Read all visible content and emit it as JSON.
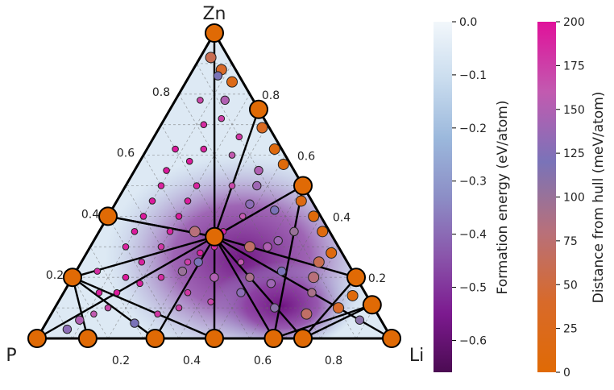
{
  "chart_data": {
    "type": "scatter",
    "subtype": "ternary-phase-diagram",
    "corners": {
      "top": "Zn",
      "left": "P",
      "right": "Li"
    },
    "axis_ticks": {
      "bottom": [
        "0.2",
        "0.4",
        "0.6",
        "0.8"
      ],
      "left": [
        "0.2",
        "0.4",
        "0.6",
        "0.8"
      ],
      "right": [
        "0.8",
        "0.6",
        "0.4",
        "0.2"
      ]
    },
    "grid": true,
    "colorbars": [
      {
        "label": "Formation energy (eV/atom)",
        "ticks": [
          "0.0",
          "−0.1",
          "−0.2",
          "−0.3",
          "−0.4",
          "−0.5",
          "−0.6"
        ],
        "tick_values": [
          0.0,
          -0.1,
          -0.2,
          -0.3,
          -0.4,
          -0.5,
          -0.6
        ],
        "range": [
          -0.66,
          0.0
        ],
        "colors": [
          "#f2f7fb",
          "#c9dcee",
          "#9bb8dc",
          "#8c8ec6",
          "#8a56ab",
          "#7c1a8f",
          "#4b0b52"
        ]
      },
      {
        "label": "Distance from hull (meV/atom)",
        "ticks": [
          "200",
          "175",
          "150",
          "125",
          "100",
          "75",
          "50",
          "25",
          "0"
        ],
        "tick_values": [
          200,
          175,
          150,
          125,
          100,
          75,
          50,
          25,
          0
        ],
        "range": [
          0,
          200
        ],
        "colors": [
          "#e0119a",
          "#c25ab0",
          "#7a73b8",
          "#b8707a",
          "#d86a2a",
          "#e06a05"
        ]
      }
    ],
    "stable_phases": [
      {
        "p": 1.0,
        "zn": 0.0
      },
      {
        "p": 0.0,
        "zn": 1.0
      },
      {
        "p": 0.0,
        "zn": 0.0
      },
      {
        "p": 0.333,
        "zn": 0.0
      },
      {
        "p": 0.25,
        "zn": 0.0
      },
      {
        "p": 0.5,
        "zn": 0.0
      },
      {
        "p": 0.667,
        "zn": 0.0
      },
      {
        "p": 0.857,
        "zn": 0.0
      },
      {
        "p": 0.0,
        "zn": 0.75
      },
      {
        "p": 0.0,
        "zn": 0.5
      },
      {
        "p": 0.0,
        "zn": 0.2
      },
      {
        "p": 0.0,
        "zn": 0.11
      },
      {
        "p": 0.6,
        "zn": 0.4
      },
      {
        "p": 0.8,
        "zn": 0.2
      },
      {
        "p": 0.333,
        "zn": 0.333
      }
    ],
    "tie_lines": [
      [
        1,
        2
      ],
      [
        0,
        1
      ],
      [
        0,
        2
      ],
      [
        14,
        0
      ],
      [
        14,
        1
      ],
      [
        14,
        2
      ],
      [
        14,
        3
      ],
      [
        14,
        4
      ],
      [
        14,
        5
      ],
      [
        14,
        6
      ],
      [
        14,
        8
      ],
      [
        14,
        9
      ],
      [
        14,
        10
      ],
      [
        14,
        12
      ],
      [
        14,
        13
      ],
      [
        13,
        6
      ],
      [
        13,
        7
      ],
      [
        12,
        14
      ],
      [
        4,
        10
      ],
      [
        4,
        11
      ],
      [
        3,
        11
      ],
      [
        3,
        9
      ],
      [
        5,
        13
      ],
      [
        8,
        10
      ]
    ],
    "metastable_phases": [
      {
        "p": 0.05,
        "zn": 0.92,
        "d": 60
      },
      {
        "p": 0.04,
        "zn": 0.88,
        "d": 40
      },
      {
        "p": 0.03,
        "zn": 0.84,
        "d": 20
      },
      {
        "p": 0.02,
        "zn": 0.69,
        "d": 30
      },
      {
        "p": 0.02,
        "zn": 0.62,
        "d": 10
      },
      {
        "p": 0.02,
        "zn": 0.57,
        "d": 5
      },
      {
        "p": 0.03,
        "zn": 0.45,
        "d": 15
      },
      {
        "p": 0.02,
        "zn": 0.4,
        "d": 5
      },
      {
        "p": 0.02,
        "zn": 0.35,
        "d": 10
      },
      {
        "p": 0.03,
        "zn": 0.28,
        "d": 12
      },
      {
        "p": 0.04,
        "zn": 0.14,
        "d": 8
      },
      {
        "p": 0.06,
        "zn": 0.06,
        "d": 110
      },
      {
        "p": 0.12,
        "zn": 0.72,
        "d": 175
      },
      {
        "p": 0.1,
        "zn": 0.66,
        "d": 180
      },
      {
        "p": 0.15,
        "zn": 0.6,
        "d": 160
      },
      {
        "p": 0.1,
        "zn": 0.55,
        "d": 150
      },
      {
        "p": 0.13,
        "zn": 0.5,
        "d": 140
      },
      {
        "p": 0.2,
        "zn": 0.5,
        "d": 170
      },
      {
        "p": 0.12,
        "zn": 0.42,
        "d": 120
      },
      {
        "p": 0.18,
        "zn": 0.44,
        "d": 130
      },
      {
        "p": 0.22,
        "zn": 0.4,
        "d": 160
      },
      {
        "p": 0.1,
        "zn": 0.35,
        "d": 100
      },
      {
        "p": 0.16,
        "zn": 0.32,
        "d": 140
      },
      {
        "p": 0.2,
        "zn": 0.3,
        "d": 150
      },
      {
        "p": 0.08,
        "zn": 0.25,
        "d": 60
      },
      {
        "p": 0.12,
        "zn": 0.2,
        "d": 80
      },
      {
        "p": 0.15,
        "zn": 0.15,
        "d": 90
      },
      {
        "p": 0.2,
        "zn": 0.22,
        "d": 120
      },
      {
        "p": 0.25,
        "zn": 0.18,
        "d": 140
      },
      {
        "p": 0.3,
        "zn": 0.25,
        "d": 160
      },
      {
        "p": 0.1,
        "zn": 0.1,
        "d": 40
      },
      {
        "p": 0.2,
        "zn": 0.08,
        "d": 70
      },
      {
        "p": 0.28,
        "zn": 0.1,
        "d": 110
      },
      {
        "p": 0.35,
        "zn": 0.15,
        "d": 130
      },
      {
        "p": 0.4,
        "zn": 0.2,
        "d": 150
      },
      {
        "p": 0.3,
        "zn": 0.35,
        "d": 190
      },
      {
        "p": 0.35,
        "zn": 0.3,
        "d": 185
      },
      {
        "p": 0.4,
        "zn": 0.28,
        "d": 190
      },
      {
        "p": 0.45,
        "zn": 0.25,
        "d": 175
      },
      {
        "p": 0.5,
        "zn": 0.3,
        "d": 180
      },
      {
        "p": 0.45,
        "zn": 0.35,
        "d": 190
      },
      {
        "p": 0.4,
        "zn": 0.4,
        "d": 195
      },
      {
        "p": 0.35,
        "zn": 0.45,
        "d": 195
      },
      {
        "p": 0.3,
        "zn": 0.5,
        "d": 190
      },
      {
        "p": 0.28,
        "zn": 0.58,
        "d": 195
      },
      {
        "p": 0.22,
        "zn": 0.62,
        "d": 190
      },
      {
        "p": 0.3,
        "zn": 0.62,
        "d": 195
      },
      {
        "p": 0.18,
        "zn": 0.7,
        "d": 185
      },
      {
        "p": 0.08,
        "zn": 0.78,
        "d": 150
      },
      {
        "p": 0.15,
        "zn": 0.78,
        "d": 170
      },
      {
        "p": 0.06,
        "zn": 0.86,
        "d": 120
      },
      {
        "p": 0.55,
        "zn": 0.35,
        "d": 195
      },
      {
        "p": 0.6,
        "zn": 0.3,
        "d": 190
      },
      {
        "p": 0.58,
        "zn": 0.25,
        "d": 190
      },
      {
        "p": 0.65,
        "zn": 0.2,
        "d": 195
      },
      {
        "p": 0.7,
        "zn": 0.15,
        "d": 195
      },
      {
        "p": 0.62,
        "zn": 0.18,
        "d": 190
      },
      {
        "p": 0.55,
        "zn": 0.2,
        "d": 185
      },
      {
        "p": 0.5,
        "zn": 0.15,
        "d": 180
      },
      {
        "p": 0.45,
        "zn": 0.12,
        "d": 170
      },
      {
        "p": 0.55,
        "zn": 0.1,
        "d": 175
      },
      {
        "p": 0.62,
        "zn": 0.08,
        "d": 180
      },
      {
        "p": 0.7,
        "zn": 0.05,
        "d": 120
      },
      {
        "p": 0.75,
        "zn": 0.1,
        "d": 170
      },
      {
        "p": 0.8,
        "zn": 0.08,
        "d": 160
      },
      {
        "p": 0.85,
        "zn": 0.06,
        "d": 150
      },
      {
        "p": 0.9,
        "zn": 0.03,
        "d": 130
      },
      {
        "p": 0.72,
        "zn": 0.22,
        "d": 185
      },
      {
        "p": 0.75,
        "zn": 0.15,
        "d": 190
      },
      {
        "p": 0.5,
        "zn": 0.4,
        "d": 195
      },
      {
        "p": 0.45,
        "zn": 0.45,
        "d": 195
      },
      {
        "p": 0.4,
        "zn": 0.5,
        "d": 190
      },
      {
        "p": 0.36,
        "zn": 0.55,
        "d": 195
      },
      {
        "p": 0.42,
        "zn": 0.25,
        "d": 120
      },
      {
        "p": 0.48,
        "zn": 0.22,
        "d": 100
      },
      {
        "p": 0.3,
        "zn": 0.2,
        "d": 90
      },
      {
        "p": 0.38,
        "zn": 0.35,
        "d": 80
      },
      {
        "p": 0.25,
        "zn": 0.3,
        "d": 70
      }
    ]
  }
}
